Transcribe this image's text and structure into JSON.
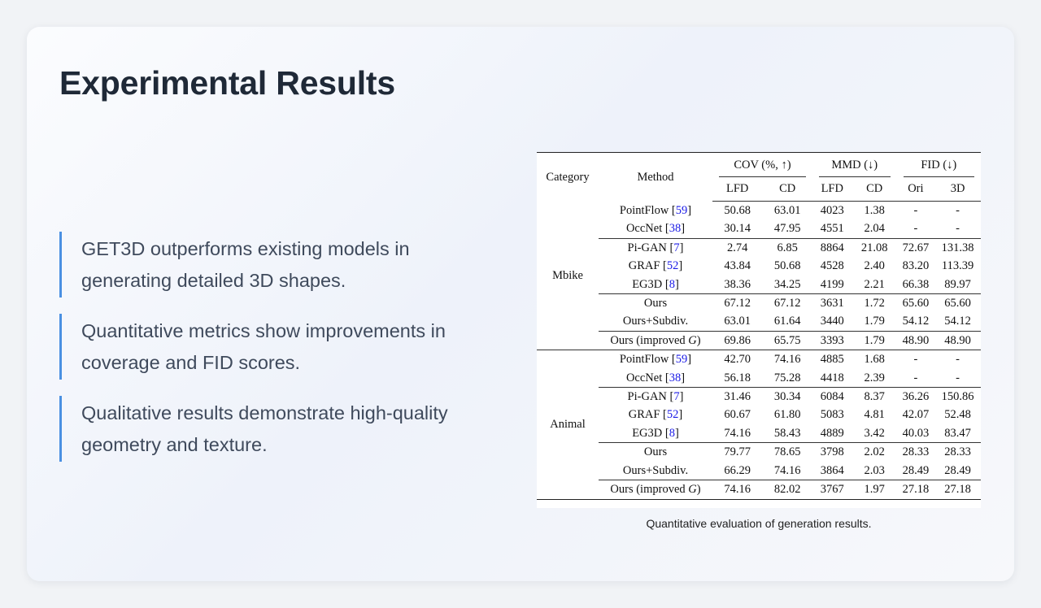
{
  "slide": {
    "title": "Experimental Results",
    "bullets": [
      "GET3D outperforms existing models in generating detailed 3D shapes.",
      "Quantitative metrics show improvements in coverage and FID scores.",
      "Qualitative results demonstrate high-quality geometry and texture."
    ],
    "caption": "Quantitative evaluation of generation results.",
    "accent_color": "#4a90e2"
  },
  "table": {
    "header": {
      "category": "Category",
      "method": "Method",
      "cov": "COV (%, ↑)",
      "mmd": "MMD (↓)",
      "fid": "FID (↓)",
      "sub": [
        "LFD",
        "CD",
        "LFD",
        "CD",
        "Ori",
        "3D"
      ]
    },
    "groups": [
      {
        "category": "Mbike",
        "rows": [
          {
            "name": "PointFlow [",
            "ref": "59",
            "close": "]",
            "values": [
              "50.68",
              "63.01",
              "4023",
              "1.38",
              "-",
              "-"
            ],
            "bold": [
              3
            ]
          },
          {
            "name": "OccNet [",
            "ref": "38",
            "close": "]",
            "values": [
              "30.14",
              "47.95",
              "4551",
              "2.04",
              "-",
              "-"
            ],
            "bold": []
          },
          {
            "name": "Pi-GAN [",
            "ref": "7",
            "close": "]",
            "values": [
              "2.74",
              "6.85",
              "8864",
              "21.08",
              "72.67",
              "131.38"
            ],
            "bold": []
          },
          {
            "name": "GRAF [",
            "ref": "52",
            "close": "]",
            "values": [
              "43.84",
              "50.68",
              "4528",
              "2.40",
              "83.20",
              "113.39"
            ],
            "bold": []
          },
          {
            "name": "EG3D [",
            "ref": "8",
            "close": "]",
            "values": [
              "38.36",
              "34.25",
              "4199",
              "2.21",
              "66.38",
              "89.97"
            ],
            "bold": []
          },
          {
            "name": "Ours",
            "ref": "",
            "close": "",
            "values": [
              "67.12",
              "67.12",
              "3631",
              "1.72",
              "65.60",
              "65.60"
            ],
            "bold": [
              0,
              1
            ]
          },
          {
            "name": "Ours+Subdiv.",
            "ref": "",
            "close": "",
            "values": [
              "63.01",
              "61.64",
              "3440",
              "1.79",
              "54.12",
              "54.12"
            ],
            "bold": [
              2,
              4,
              5
            ]
          },
          {
            "name": "Ours (improved G)",
            "ref": "",
            "close": "",
            "values": [
              "69.86",
              "65.75",
              "3393",
              "1.79",
              "48.90",
              "48.90"
            ],
            "bold": []
          }
        ]
      },
      {
        "category": "Animal",
        "rows": [
          {
            "name": "PointFlow [",
            "ref": "59",
            "close": "]",
            "values": [
              "42.70",
              "74.16",
              "4885",
              "1.68",
              "-",
              "-"
            ],
            "bold": [
              3
            ]
          },
          {
            "name": "OccNet [",
            "ref": "38",
            "close": "]",
            "values": [
              "56.18",
              "75.28",
              "4418",
              "2.39",
              "-",
              "-"
            ],
            "bold": []
          },
          {
            "name": "Pi-GAN [",
            "ref": "7",
            "close": "]",
            "values": [
              "31.46",
              "30.34",
              "6084",
              "8.37",
              "36.26",
              "150.86"
            ],
            "bold": []
          },
          {
            "name": "GRAF [",
            "ref": "52",
            "close": "]",
            "values": [
              "60.67",
              "61.80",
              "5083",
              "4.81",
              "42.07",
              "52.48"
            ],
            "bold": []
          },
          {
            "name": "EG3D [",
            "ref": "8",
            "close": "]",
            "values": [
              "74.16",
              "58.43",
              "4889",
              "3.42",
              "40.03",
              "83.47"
            ],
            "bold": []
          },
          {
            "name": "Ours",
            "ref": "",
            "close": "",
            "values": [
              "79.77",
              "78.65",
              "3798",
              "2.02",
              "28.33",
              "28.33"
            ],
            "bold": [
              0,
              1,
              2,
              4,
              5
            ]
          },
          {
            "name": "Ours+Subdiv.",
            "ref": "",
            "close": "",
            "values": [
              "66.29",
              "74.16",
              "3864",
              "2.03",
              "28.49",
              "28.49"
            ],
            "bold": []
          },
          {
            "name": "Ours (improved G)",
            "ref": "",
            "close": "",
            "values": [
              "74.16",
              "82.02",
              "3767",
              "1.97",
              "27.18",
              "27.18"
            ],
            "bold": []
          }
        ]
      }
    ]
  }
}
